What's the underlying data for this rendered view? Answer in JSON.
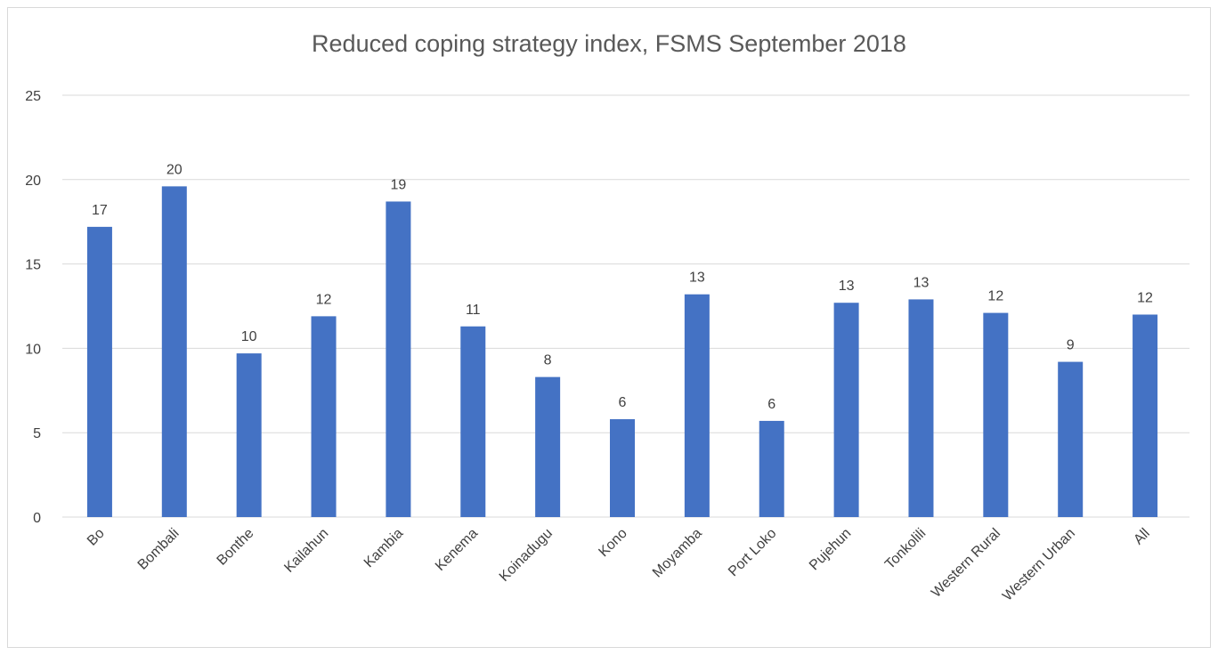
{
  "chart_data": {
    "type": "bar",
    "title": "Reduced coping strategy index, FSMS September 2018",
    "categories": [
      "Bo",
      "Bombali",
      "Bonthe",
      "Kailahun",
      "Kambia",
      "Kenema",
      "Koinadugu",
      "Kono",
      "Moyamba",
      "Port Loko",
      "Pujehun",
      "Tonkolili",
      "Western Rural",
      "Western Urban",
      "All"
    ],
    "values": [
      17.2,
      19.6,
      9.7,
      11.9,
      18.7,
      11.3,
      8.3,
      5.8,
      13.2,
      5.7,
      12.7,
      12.9,
      12.1,
      9.2,
      12.0
    ],
    "value_labels": [
      "17",
      "20",
      "10",
      "12",
      "19",
      "11",
      "8",
      "6",
      "13",
      "6",
      "13",
      "13",
      "12",
      "9",
      "12"
    ],
    "color": "#4472c4",
    "ylim": [
      0,
      25
    ],
    "yticks": [
      0,
      5,
      10,
      15,
      20,
      25
    ],
    "grid": true
  }
}
